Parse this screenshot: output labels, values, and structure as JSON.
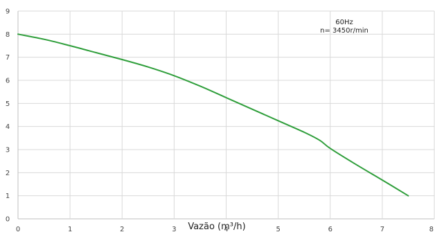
{
  "chart_data": {
    "type": "line",
    "title": "",
    "xlabel": "Vazão (m³/h)",
    "ylabel": "",
    "xlim": [
      0,
      8
    ],
    "ylim": [
      0,
      9
    ],
    "x_ticks": [
      "0",
      "1",
      "2",
      "3",
      "4",
      "5",
      "6",
      "7",
      "8"
    ],
    "y_ticks": [
      "0",
      "1",
      "2",
      "3",
      "4",
      "5",
      "6",
      "7",
      "8",
      "9"
    ],
    "grid": true,
    "annotations": [
      "60Hz",
      "n= 3450r/min"
    ],
    "series": [
      {
        "color": "#2e9e3a",
        "x": [
          0,
          0.5,
          1,
          1.5,
          2,
          2.5,
          3,
          3.5,
          4,
          4.5,
          5,
          5.5,
          5.8,
          6,
          6.5,
          7,
          7.5
        ],
        "y": [
          8.0,
          7.78,
          7.5,
          7.2,
          6.9,
          6.58,
          6.2,
          5.75,
          5.25,
          4.75,
          4.25,
          3.75,
          3.4,
          3.05,
          2.35,
          1.68,
          1.0
        ]
      }
    ]
  }
}
